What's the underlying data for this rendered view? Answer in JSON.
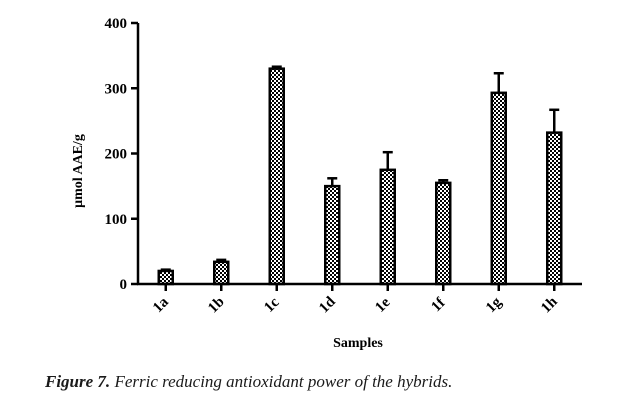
{
  "chart_data": {
    "type": "bar",
    "categories": [
      "1a",
      "1b",
      "1c",
      "1d",
      "1e",
      "1f",
      "1g",
      "1h"
    ],
    "values": [
      20,
      34,
      330,
      150,
      175,
      155,
      293,
      232
    ],
    "errors": [
      2,
      3,
      3,
      12,
      27,
      4,
      30,
      35
    ],
    "ylabel": "μmol AAE/g",
    "xlabel": "Samples",
    "ylim": [
      0,
      400
    ],
    "yticks": [
      "0",
      "100",
      "200",
      "300",
      "400"
    ],
    "grid": false,
    "bar_fill": "checkered black and white"
  },
  "caption": {
    "lead": "Figure 7.",
    "text": " Ferric reducing antioxidant power of the hybrids."
  }
}
